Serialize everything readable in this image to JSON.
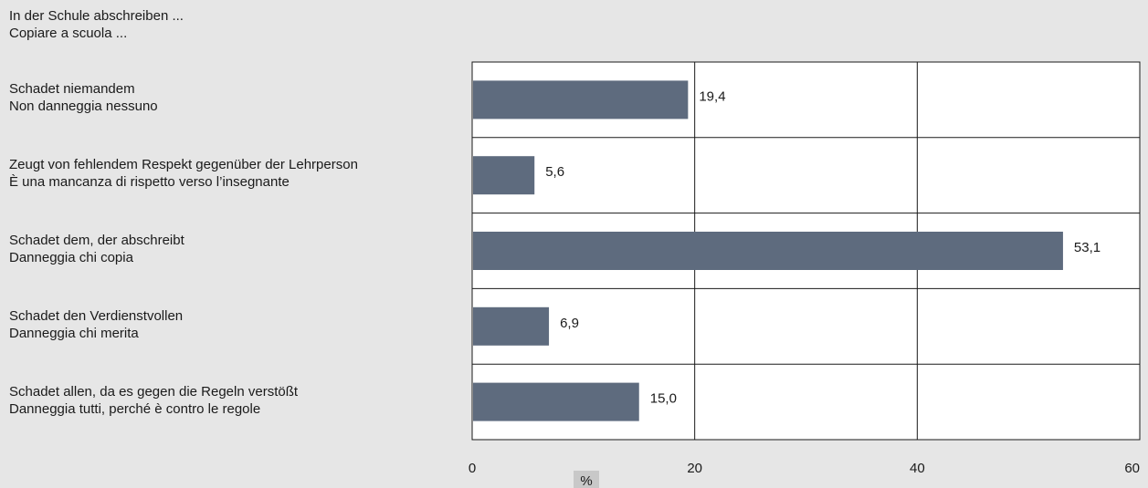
{
  "title_lines": [
    "In der Schule abschreiben ...",
    "Copiare a scuola ..."
  ],
  "chart_data": {
    "type": "bar",
    "orientation": "horizontal",
    "categories": [
      [
        "Schadet niemandem",
        "Non danneggia nessuno"
      ],
      [
        "Zeugt von fehlendem Respekt gegenüber der Lehrperson",
        "È una mancanza di rispetto verso l’insegnante"
      ],
      [
        "Schadet dem, der abschreibt",
        "Danneggia chi copia"
      ],
      [
        "Schadet den Verdienstvollen",
        "Danneggia chi merita"
      ],
      [
        "Schadet allen, da es gegen die Regeln verstößt",
        "Danneggia tutti, perché è contro le regole"
      ]
    ],
    "values": [
      19.4,
      5.6,
      53.1,
      6.9,
      15.0
    ],
    "value_labels": [
      "19,4",
      "5,6",
      "53,1",
      "6,9",
      "15,0"
    ],
    "xlim": [
      0,
      60
    ],
    "xticks": [
      0,
      20,
      40,
      60
    ],
    "xtick_labels": [
      "0",
      "20",
      "40",
      "60"
    ],
    "xlabel": "%",
    "grid": true,
    "bar_color": "#5e6b7e",
    "plot_background": "#ffffff",
    "page_background": "#e6e6e6"
  }
}
